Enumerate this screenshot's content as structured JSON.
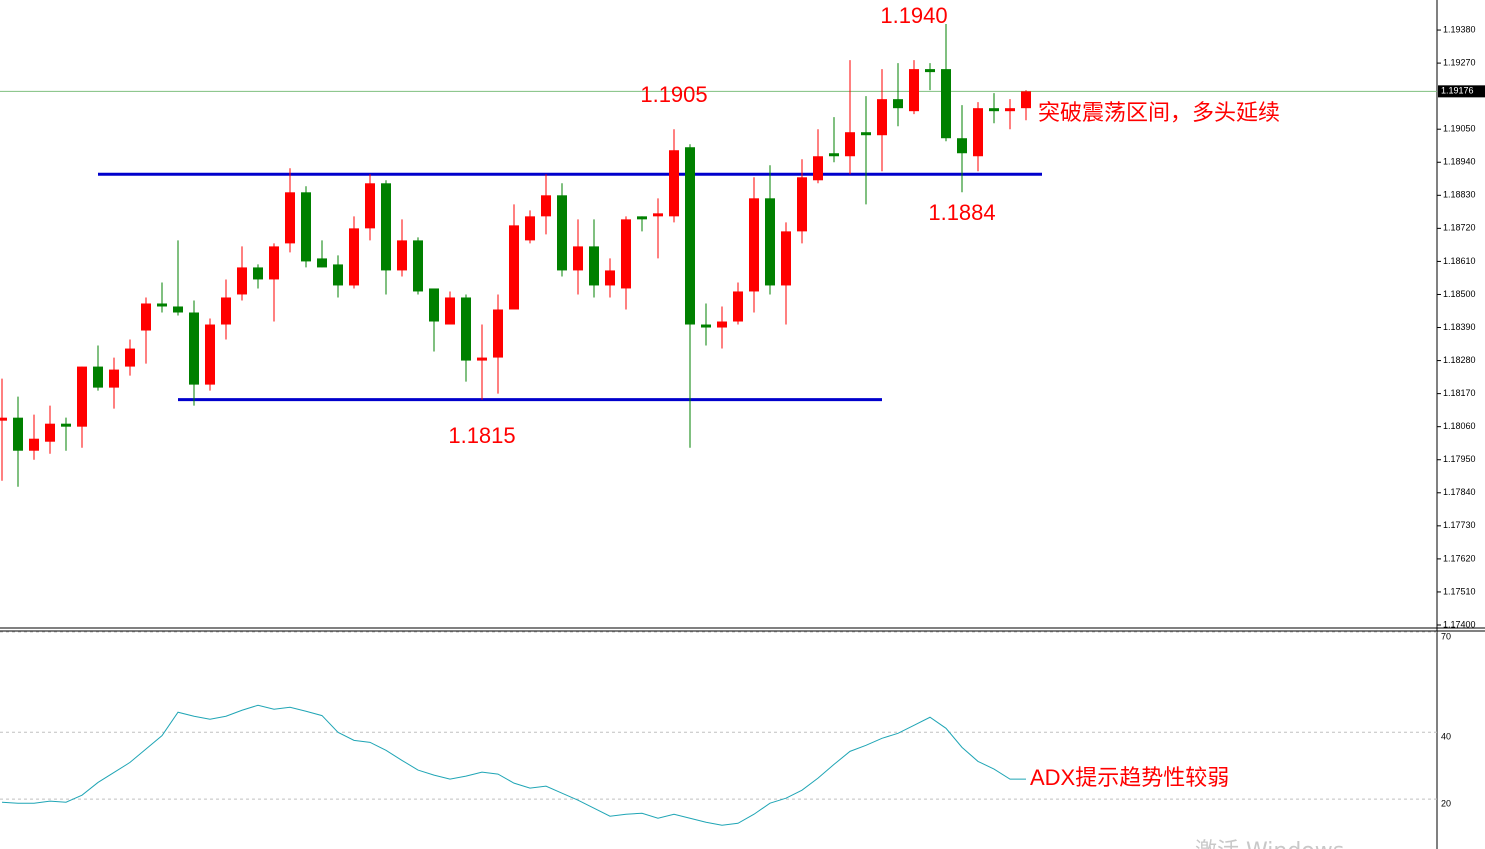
{
  "chart_data": [
    {
      "type": "candlestick",
      "up_color": "#ff0000",
      "down_color": "#008000",
      "open": [
        1.1808,
        1.1809,
        1.1798,
        1.1801,
        1.1807,
        1.1806,
        1.1826,
        1.1819,
        1.1826,
        1.1838,
        1.1847,
        1.1846,
        1.1844,
        1.182,
        1.184,
        1.185,
        1.1859,
        1.1855,
        1.1867,
        1.1884,
        1.1862,
        1.186,
        1.1853,
        1.1872,
        1.1887,
        1.1858,
        1.1868,
        1.1852,
        1.184,
        1.1849,
        1.1828,
        1.1829,
        1.1845,
        1.1868,
        1.1876,
        1.1883,
        1.1858,
        1.1866,
        1.1853,
        1.1852,
        1.1876,
        1.1876,
        1.1876,
        1.1899,
        1.184,
        1.1839,
        1.1841,
        1.1851,
        1.1882,
        1.1853,
        1.1871,
        1.1888,
        1.1897,
        1.1896,
        1.1904,
        1.1903,
        1.1915,
        1.1911,
        1.1925,
        1.1925,
        1.1902,
        1.1896,
        1.1912,
        1.1911,
        1.1912
      ],
      "high": [
        1.1822,
        1.1816,
        1.181,
        1.1813,
        1.1809,
        1.1826,
        1.1833,
        1.1829,
        1.1835,
        1.1849,
        1.1854,
        1.1868,
        1.1848,
        1.1842,
        1.1855,
        1.1866,
        1.186,
        1.1867,
        1.1892,
        1.1886,
        1.1868,
        1.1863,
        1.1876,
        1.189,
        1.1888,
        1.1875,
        1.1869,
        1.1852,
        1.1851,
        1.185,
        1.184,
        1.185,
        1.188,
        1.1878,
        1.189,
        1.1887,
        1.1875,
        1.1875,
        1.1862,
        1.1876,
        1.1876,
        1.1882,
        1.1905,
        1.19,
        1.1847,
        1.1846,
        1.1854,
        1.1889,
        1.1893,
        1.1874,
        1.1895,
        1.1905,
        1.1909,
        1.1928,
        1.1916,
        1.1925,
        1.1927,
        1.1928,
        1.1927,
        1.194,
        1.1913,
        1.1914,
        1.1917,
        1.1915,
        1.1918
      ],
      "low": [
        1.1788,
        1.1786,
        1.1795,
        1.1797,
        1.1798,
        1.1799,
        1.1818,
        1.1812,
        1.1823,
        1.1827,
        1.1844,
        1.1843,
        1.1813,
        1.1818,
        1.1835,
        1.1848,
        1.1852,
        1.1841,
        1.1864,
        1.1859,
        1.1859,
        1.1849,
        1.1852,
        1.1868,
        1.185,
        1.1856,
        1.185,
        1.1831,
        1.184,
        1.1821,
        1.1815,
        1.1817,
        1.1845,
        1.1867,
        1.187,
        1.1856,
        1.185,
        1.1849,
        1.1849,
        1.1845,
        1.1871,
        1.1862,
        1.1874,
        1.1799,
        1.1833,
        1.1832,
        1.184,
        1.1844,
        1.185,
        1.184,
        1.1867,
        1.1887,
        1.1894,
        1.189,
        1.188,
        1.1891,
        1.1906,
        1.191,
        1.1918,
        1.1901,
        1.1884,
        1.1891,
        1.1907,
        1.1905,
        1.1908
      ],
      "close": [
        1.1809,
        1.1798,
        1.1802,
        1.1807,
        1.1806,
        1.1826,
        1.1819,
        1.1825,
        1.1832,
        1.1847,
        1.1846,
        1.1844,
        1.182,
        1.184,
        1.1849,
        1.1859,
        1.1855,
        1.1866,
        1.1884,
        1.1861,
        1.1859,
        1.1853,
        1.1872,
        1.1887,
        1.1858,
        1.1868,
        1.1851,
        1.1841,
        1.1849,
        1.1828,
        1.1829,
        1.1845,
        1.1873,
        1.1876,
        1.1883,
        1.1858,
        1.1866,
        1.1853,
        1.1858,
        1.1875,
        1.1875,
        1.1877,
        1.1898,
        1.184,
        1.1839,
        1.1841,
        1.1851,
        1.1882,
        1.1853,
        1.1871,
        1.1889,
        1.1896,
        1.1896,
        1.1904,
        1.1903,
        1.1915,
        1.1912,
        1.1925,
        1.1924,
        1.1902,
        1.1897,
        1.1912,
        1.1911,
        1.1912,
        1.19176
      ],
      "ylim": [
        1.1739,
        1.1948
      ],
      "yticks": [
        {
          "value": 1.174,
          "label": "1.17400"
        },
        {
          "value": 1.1751,
          "label": "1.17510"
        },
        {
          "value": 1.1762,
          "label": "1.17620"
        },
        {
          "value": 1.1773,
          "label": "1.17730"
        },
        {
          "value": 1.1784,
          "label": "1.17840"
        },
        {
          "value": 1.1795,
          "label": "1.17950"
        },
        {
          "value": 1.1806,
          "label": "1.18060"
        },
        {
          "value": 1.1817,
          "label": "1.18170"
        },
        {
          "value": 1.1828,
          "label": "1.18280"
        },
        {
          "value": 1.1839,
          "label": "1.18390"
        },
        {
          "value": 1.185,
          "label": "1.18500"
        },
        {
          "value": 1.1861,
          "label": "1.18610"
        },
        {
          "value": 1.1872,
          "label": "1.18720"
        },
        {
          "value": 1.1883,
          "label": "1.18830"
        },
        {
          "value": 1.1894,
          "label": "1.18940"
        },
        {
          "value": 1.1905,
          "label": "1.19050"
        },
        {
          "value": 1.1927,
          "label": "1.19270"
        },
        {
          "value": 1.1938,
          "label": "1.19380"
        }
      ],
      "last_price": {
        "value": 1.19176,
        "label": "1.19176",
        "color": "#7fbf7f"
      },
      "levels": [
        {
          "value": 1.189,
          "color": "#0000cc"
        },
        {
          "value": 1.1815,
          "color": "#0000cc"
        }
      ],
      "annotations": [
        "1.1940",
        "1.1905",
        "1.1884",
        "1.1815",
        "突破震荡区间，多头延续"
      ],
      "annotation_color": "#ff0000"
    },
    {
      "type": "line",
      "color": "#1fa5b5",
      "values": [
        19.1,
        18.8,
        18.8,
        19.4,
        19.1,
        21.2,
        25.0,
        28.0,
        31.0,
        35.0,
        39.0,
        46.0,
        44.8,
        43.9,
        44.8,
        46.6,
        48.1,
        46.9,
        47.5,
        46.3,
        45.0,
        40.0,
        37.6,
        37.0,
        34.6,
        31.6,
        28.7,
        27.2,
        26.0,
        26.9,
        28.1,
        27.5,
        24.8,
        23.3,
        23.9,
        21.8,
        19.7,
        17.3,
        14.9,
        15.5,
        15.8,
        14.3,
        15.5,
        14.3,
        13.1,
        12.2,
        12.8,
        15.5,
        18.8,
        20.3,
        22.7,
        26.3,
        30.4,
        34.3,
        36.1,
        38.2,
        39.7,
        42.1,
        44.5,
        41.2,
        35.5,
        31.3,
        29.0,
        26.0,
        26.0
      ],
      "ylim": [
        5.1,
        70
      ],
      "yticks": [
        20,
        40,
        70
      ],
      "grid": true,
      "annotations": [
        "ADX提示趋势性较弱"
      ],
      "annotation_color": "#ff0000"
    }
  ],
  "watermark": "激活 Windows"
}
